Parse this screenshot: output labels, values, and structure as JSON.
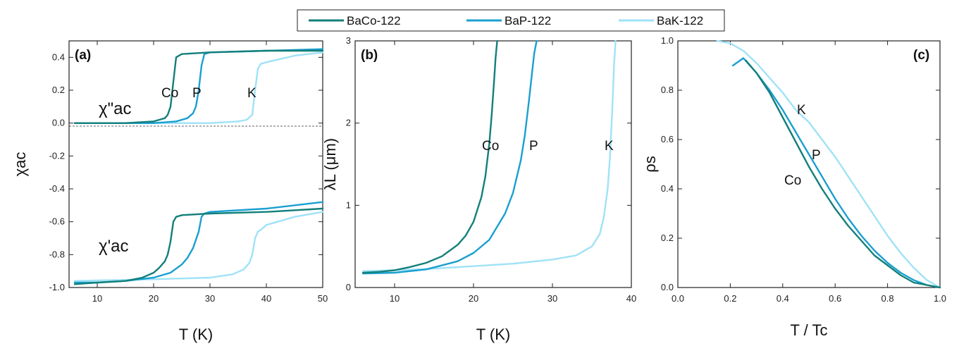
{
  "chart_data": {
    "type": "line",
    "legend": {
      "placement": "top-center",
      "entries": [
        "BaCo-122",
        "BaP-122",
        "BaK-122"
      ]
    },
    "colors": {
      "BaCo-122": "#137f7a",
      "BaP-122": "#1a9fd0",
      "BaK-122": "#9fe2f7"
    },
    "panels": [
      {
        "id": "a",
        "label": "(a)",
        "xlabel": "T  (K)",
        "ylabel": "χac",
        "xlim": [
          5,
          50
        ],
        "ylim": [
          -1.0,
          0.5
        ],
        "xticks": [
          10,
          20,
          30,
          40,
          50
        ],
        "yticks": [
          -1.0,
          -0.8,
          -0.6,
          -0.4,
          -0.2,
          0.0,
          0.2,
          0.4
        ],
        "ytick_labels": [
          "-1.0",
          "-0.8",
          "-0.6",
          "-0.4",
          "-0.2",
          "0.0",
          "0.2",
          "0.4"
        ],
        "annotations": {
          "chi2": "χ\"ac",
          "chi1": "χ'ac",
          "co": "Co",
          "p": "P",
          "k": "K"
        },
        "series": [
          {
            "name": "BaCo-122",
            "component": "chi_imag",
            "x": [
              6,
              10,
              15,
              20,
              21,
              22,
              22.5,
              23,
              23.5,
              24,
              25,
              30,
              40,
              50
            ],
            "y": [
              0.0,
              0.0,
              0.0,
              0.01,
              0.02,
              0.03,
              0.05,
              0.1,
              0.25,
              0.4,
              0.42,
              0.43,
              0.44,
              0.44
            ]
          },
          {
            "name": "BaP-122",
            "component": "chi_imag",
            "x": [
              6,
              10,
              20,
              24,
              26,
              27,
              27.5,
              28,
              28.5,
              29,
              30,
              40,
              50
            ],
            "y": [
              0.0,
              0.0,
              0.0,
              0.01,
              0.03,
              0.06,
              0.1,
              0.2,
              0.35,
              0.42,
              0.43,
              0.44,
              0.45
            ]
          },
          {
            "name": "BaK-122",
            "component": "chi_imag",
            "x": [
              6,
              20,
              30,
              35,
              36.5,
              37.5,
              38,
              38.5,
              39,
              40,
              45,
              50
            ],
            "y": [
              0.0,
              0.0,
              0.0,
              0.01,
              0.02,
              0.05,
              0.2,
              0.33,
              0.36,
              0.37,
              0.41,
              0.43
            ]
          },
          {
            "name": "BaCo-122",
            "component": "chi_real",
            "x": [
              6,
              10,
              15,
              18,
              20,
              21,
              22,
              22.5,
              23,
              23.5,
              24,
              25,
              30,
              40,
              50
            ],
            "y": [
              -0.98,
              -0.97,
              -0.96,
              -0.94,
              -0.91,
              -0.88,
              -0.84,
              -0.8,
              -0.72,
              -0.6,
              -0.57,
              -0.56,
              -0.55,
              -0.54,
              -0.52
            ]
          },
          {
            "name": "BaP-122",
            "component": "chi_real",
            "x": [
              6,
              10,
              15,
              20,
              23,
              25,
              26,
              27,
              28,
              28.5,
              29,
              30,
              40,
              50
            ],
            "y": [
              -0.97,
              -0.97,
              -0.96,
              -0.94,
              -0.91,
              -0.86,
              -0.82,
              -0.76,
              -0.66,
              -0.57,
              -0.55,
              -0.54,
              -0.52,
              -0.48
            ]
          },
          {
            "name": "BaK-122",
            "component": "chi_real",
            "x": [
              6,
              20,
              30,
              34,
              36,
              37,
              37.5,
              38,
              38.5,
              39,
              40,
              45,
              50
            ],
            "y": [
              -0.96,
              -0.95,
              -0.94,
              -0.92,
              -0.89,
              -0.85,
              -0.8,
              -0.7,
              -0.66,
              -0.65,
              -0.62,
              -0.57,
              -0.54
            ]
          }
        ]
      },
      {
        "id": "b",
        "label": "(b)",
        "xlabel": "T  (K)",
        "ylabel": "λL  (μm)",
        "xlim": [
          5,
          40
        ],
        "ylim": [
          0,
          3
        ],
        "xticks": [
          10,
          20,
          30,
          40
        ],
        "yticks": [
          0,
          1,
          2,
          3
        ],
        "ytick_labels": [
          "0",
          "1",
          "2",
          "3"
        ],
        "annotations": {
          "co": "Co",
          "p": "P",
          "k": "K"
        },
        "series": [
          {
            "name": "BaCo-122",
            "x": [
              6,
              8,
              10,
              12,
              14,
              16,
              18,
              19,
              20,
              21,
              21.5,
              22,
              22.3,
              22.6,
              22.8,
              23
            ],
            "y": [
              0.18,
              0.19,
              0.21,
              0.25,
              0.3,
              0.38,
              0.52,
              0.63,
              0.8,
              1.1,
              1.35,
              1.75,
              2.1,
              2.5,
              2.8,
              3.0
            ]
          },
          {
            "name": "BaP-122",
            "x": [
              6,
              10,
              14,
              18,
              20,
              22,
              24,
              25,
              26,
              26.5,
              27,
              27.4,
              27.7,
              28
            ],
            "y": [
              0.17,
              0.18,
              0.22,
              0.32,
              0.42,
              0.58,
              0.9,
              1.15,
              1.55,
              1.85,
              2.25,
              2.6,
              2.85,
              3.0
            ]
          },
          {
            "name": "BaK-122",
            "x": [
              6,
              10,
              15,
              20,
              25,
              30,
              33,
              35,
              36,
              36.5,
              37,
              37.3,
              37.6,
              37.8,
              38
            ],
            "y": [
              0.2,
              0.21,
              0.23,
              0.26,
              0.29,
              0.34,
              0.39,
              0.5,
              0.65,
              0.85,
              1.2,
              1.6,
              2.2,
              2.7,
              3.0
            ]
          }
        ]
      },
      {
        "id": "c",
        "label": "(c)",
        "xlabel": "T / Tc",
        "ylabel": "ρs",
        "xlim": [
          0,
          1
        ],
        "ylim": [
          0,
          1
        ],
        "xticks": [
          0.0,
          0.2,
          0.4,
          0.6,
          0.8,
          1.0
        ],
        "xtick_labels": [
          "0.0",
          "0.2",
          "0.4",
          "0.6",
          "0.8",
          "1.0"
        ],
        "yticks": [
          0.0,
          0.2,
          0.4,
          0.6,
          0.8,
          1.0
        ],
        "ytick_labels": [
          "0.0",
          "0.2",
          "0.4",
          "0.6",
          "0.8",
          "1.0"
        ],
        "annotations": {
          "co": "Co",
          "p": "P",
          "k": "K"
        },
        "series": [
          {
            "name": "BaCo-122",
            "x": [
              0.26,
              0.3,
              0.35,
              0.4,
              0.45,
              0.5,
              0.55,
              0.6,
              0.65,
              0.7,
              0.75,
              0.8,
              0.85,
              0.9,
              0.95,
              1.0
            ],
            "y": [
              0.92,
              0.87,
              0.79,
              0.69,
              0.59,
              0.49,
              0.4,
              0.32,
              0.25,
              0.19,
              0.13,
              0.09,
              0.05,
              0.02,
              0.01,
              0.0
            ]
          },
          {
            "name": "BaP-122",
            "x": [
              0.21,
              0.25,
              0.3,
              0.35,
              0.4,
              0.45,
              0.5,
              0.55,
              0.6,
              0.65,
              0.7,
              0.75,
              0.8,
              0.85,
              0.9,
              0.95,
              1.0
            ],
            "y": [
              0.9,
              0.93,
              0.87,
              0.8,
              0.72,
              0.63,
              0.54,
              0.45,
              0.36,
              0.28,
              0.21,
              0.15,
              0.1,
              0.06,
              0.03,
              0.01,
              0.0
            ]
          },
          {
            "name": "BaK-122",
            "x": [
              0.15,
              0.2,
              0.25,
              0.3,
              0.35,
              0.4,
              0.45,
              0.5,
              0.55,
              0.6,
              0.65,
              0.7,
              0.75,
              0.8,
              0.85,
              0.9,
              0.95,
              1.0
            ],
            "y": [
              1.0,
              0.99,
              0.96,
              0.91,
              0.85,
              0.79,
              0.72,
              0.67,
              0.6,
              0.53,
              0.45,
              0.37,
              0.29,
              0.21,
              0.14,
              0.08,
              0.03,
              0.0
            ]
          }
        ]
      }
    ]
  }
}
